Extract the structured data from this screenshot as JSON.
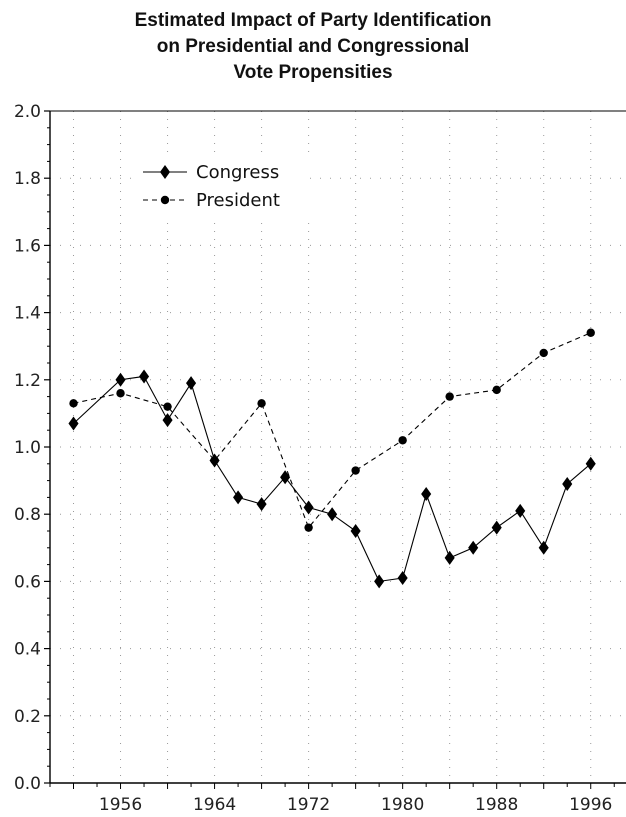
{
  "chart_data": {
    "type": "line",
    "title_lines": [
      "Estimated Impact of Party Identification",
      "on Presidential and Congressional",
      "Vote Propensities"
    ],
    "xlabel": "",
    "ylabel": "",
    "xlim": [
      1950,
      1999
    ],
    "ylim": [
      0,
      2
    ],
    "xticks": [
      1956,
      1964,
      1972,
      1980,
      1988,
      1996
    ],
    "yticks": [
      0.0,
      0.2,
      0.4,
      0.6,
      0.8,
      1.0,
      1.2,
      1.4,
      1.6,
      1.8,
      2.0
    ],
    "ytick_labels": [
      "0.0",
      "0.2",
      "0.4",
      "0.6",
      "0.8",
      "1.0",
      "1.2",
      "1.4",
      "1.6",
      "1.8",
      "2.0"
    ],
    "grid": "dotted",
    "legend_position": "top-left",
    "series": [
      {
        "name": "Congress",
        "marker": "diamond",
        "line": "solid",
        "points": [
          [
            1952,
            1.07
          ],
          [
            1956,
            1.2
          ],
          [
            1958,
            1.21
          ],
          [
            1960,
            1.08
          ],
          [
            1962,
            1.19
          ],
          [
            1964,
            0.96
          ],
          [
            1966,
            0.85
          ],
          [
            1968,
            0.83
          ],
          [
            1970,
            0.91
          ],
          [
            1972,
            0.82
          ],
          [
            1974,
            0.8
          ],
          [
            1976,
            0.75
          ],
          [
            1978,
            0.6
          ],
          [
            1980,
            0.61
          ],
          [
            1982,
            0.86
          ],
          [
            1984,
            0.67
          ],
          [
            1986,
            0.7
          ],
          [
            1988,
            0.76
          ],
          [
            1990,
            0.81
          ],
          [
            1992,
            0.7
          ],
          [
            1994,
            0.89
          ],
          [
            1996,
            0.95
          ]
        ]
      },
      {
        "name": "President",
        "marker": "circle",
        "line": "dashed",
        "points": [
          [
            1952,
            1.13
          ],
          [
            1956,
            1.16
          ],
          [
            1960,
            1.12
          ],
          [
            1964,
            0.96
          ],
          [
            1968,
            1.13
          ],
          [
            1972,
            0.76
          ],
          [
            1976,
            0.93
          ],
          [
            1980,
            1.02
          ],
          [
            1984,
            1.15
          ],
          [
            1988,
            1.17
          ],
          [
            1992,
            1.28
          ],
          [
            1996,
            1.34
          ]
        ]
      }
    ]
  }
}
